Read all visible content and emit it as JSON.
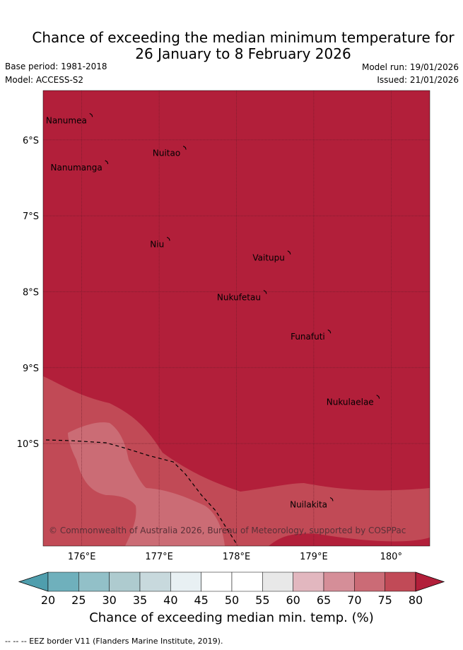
{
  "title_line1": "Chance of exceeding the median minimum temperature for",
  "title_line2": "26 January to 8 February 2026",
  "base_period": "Base period: 1981-2018",
  "model": "Model: ACCESS-S2",
  "model_run": "Model run: 19/01/2026",
  "issued": "Issued: 21/01/2026",
  "map": {
    "lon_range": [
      175.5,
      180.5
    ],
    "lat_range": [
      -5.35,
      -11.35
    ],
    "lon_ticks": [
      {
        "value": 176,
        "label": "176°E"
      },
      {
        "value": 177,
        "label": "177°E"
      },
      {
        "value": 178,
        "label": "178°E"
      },
      {
        "value": 179,
        "label": "179°E"
      },
      {
        "value": 180,
        "label": "180°"
      }
    ],
    "lat_ticks": [
      {
        "value": -6,
        "label": "6°S"
      },
      {
        "value": -7,
        "label": "7°S"
      },
      {
        "value": -8,
        "label": "8°S"
      },
      {
        "value": -9,
        "label": "9°S"
      },
      {
        "value": -10,
        "label": "10°S"
      }
    ],
    "places": [
      {
        "name": "Nanumea",
        "lon": 176.12,
        "lat": -5.67
      },
      {
        "name": "Nuitao",
        "lon": 177.33,
        "lat": -6.1
      },
      {
        "name": "Nanumanga",
        "lon": 176.32,
        "lat": -6.29
      },
      {
        "name": "Niu",
        "lon": 177.12,
        "lat": -7.3
      },
      {
        "name": "Vaitupu",
        "lon": 178.68,
        "lat": -7.48
      },
      {
        "name": "Nukufetau",
        "lon": 178.37,
        "lat": -8.0
      },
      {
        "name": "Funafuti",
        "lon": 179.2,
        "lat": -8.52
      },
      {
        "name": "Nukulaelae",
        "lon": 179.83,
        "lat": -9.38
      },
      {
        "name": "Nuilakita",
        "lon": 179.23,
        "lat": -10.73
      }
    ],
    "fill_colors": {
      "c80": "#b21f3a",
      "c75": "#c14a56",
      "c70": "#cb6c75"
    },
    "copyright": "© Commonwealth of Australia 2026, Bureau of Meteorology, supported by COSPPac"
  },
  "colorbar": {
    "ticks": [
      "20",
      "25",
      "30",
      "35",
      "40",
      "45",
      "50",
      "55",
      "60",
      "65",
      "70",
      "75",
      "80"
    ],
    "colors": [
      "#4f9ead",
      "#6fb0bc",
      "#92c0c8",
      "#aecbcf",
      "#c8d9dd",
      "#e8f0f3",
      "#ffffff",
      "#ffffff",
      "#e8e8e8",
      "#e2b7bf",
      "#d58e98",
      "#cb6b76",
      "#c14a57",
      "#b21f3a"
    ],
    "label": "Chance of exceeding median min. temp. (%)"
  },
  "footnote": "--  --  -- EEZ border V11 (Flanders Marine Institute, 2019)."
}
